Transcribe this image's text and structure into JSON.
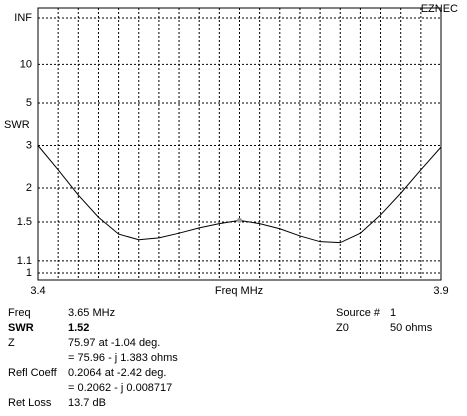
{
  "brand": "EZNEC",
  "chart_data": {
    "type": "line",
    "y_scale": "reflection",
    "ylabel": "SWR",
    "xlabel": "Freq MHz",
    "x": [
      3.4,
      3.425,
      3.45,
      3.475,
      3.5,
      3.525,
      3.55,
      3.575,
      3.6,
      3.625,
      3.65,
      3.675,
      3.7,
      3.725,
      3.75,
      3.775,
      3.8,
      3.825,
      3.85,
      3.875,
      3.9
    ],
    "series": [
      {
        "name": "SWR",
        "color": "#000000",
        "values": [
          3.0,
          2.36,
          1.88,
          1.56,
          1.36,
          1.3,
          1.32,
          1.37,
          1.43,
          1.48,
          1.52,
          1.48,
          1.42,
          1.34,
          1.28,
          1.27,
          1.37,
          1.59,
          1.91,
          2.36,
          2.95
        ]
      }
    ],
    "cursor": {
      "x": 3.65,
      "y": 1.52
    },
    "xlim": [
      3.4,
      3.9
    ],
    "xticks": [
      3.4,
      3.9
    ],
    "ylim": [
      1,
      null
    ],
    "yticks": [
      1,
      1.1,
      1.5,
      2,
      3,
      5,
      10,
      {
        "value": null,
        "label": "INF"
      }
    ],
    "grid": true
  },
  "readout": {
    "rows": [
      [
        "Freq",
        "3.65 MHz"
      ],
      [
        "SWR",
        "1.52"
      ],
      [
        "Z",
        "75.97 at -1.04 deg."
      ],
      [
        "",
        "= 75.96 - j 1.383 ohms"
      ],
      [
        "Refl Coeff",
        "0.2064 at -2.42 deg."
      ],
      [
        "",
        "= 0.2062 - j 0.008717"
      ],
      [
        "Ret Loss",
        "13.7 dB"
      ]
    ],
    "side": [
      [
        "Source #",
        "1"
      ],
      [
        "Z0",
        "50 ohms"
      ]
    ]
  }
}
